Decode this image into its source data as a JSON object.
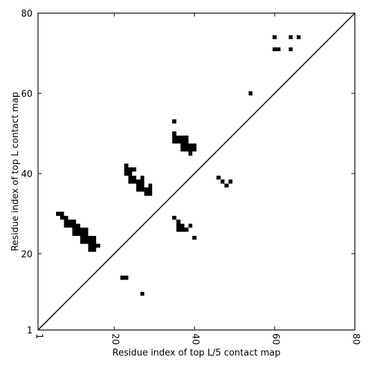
{
  "chart_data": {
    "type": "scatter",
    "title": "",
    "xlabel": "Residue index of top L/5 contact map",
    "ylabel": "Residue index of top L contact map",
    "xlim": [
      1,
      80
    ],
    "ylim": [
      1,
      80
    ],
    "xticks": [
      1,
      20,
      40,
      60,
      80
    ],
    "yticks": [
      1,
      20,
      40,
      60,
      80
    ],
    "diagonal_line": true,
    "grid": false,
    "marker": "square",
    "marker_color": "#000000",
    "upper_triangle_points": [
      [
        60,
        74
      ],
      [
        64,
        74
      ],
      [
        66,
        74
      ],
      [
        60,
        71
      ],
      [
        61,
        71
      ],
      [
        64,
        71
      ],
      [
        54,
        60
      ],
      [
        35,
        53
      ],
      [
        35,
        50
      ],
      [
        35,
        49
      ],
      [
        36,
        49
      ],
      [
        37,
        49
      ],
      [
        38,
        49
      ],
      [
        35,
        48
      ],
      [
        36,
        48
      ],
      [
        37,
        48
      ],
      [
        38,
        48
      ],
      [
        37,
        47
      ],
      [
        38,
        47
      ],
      [
        39,
        47
      ],
      [
        40,
        47
      ],
      [
        37,
        46
      ],
      [
        38,
        46
      ],
      [
        39,
        46
      ],
      [
        40,
        46
      ],
      [
        39,
        45
      ],
      [
        23,
        42
      ],
      [
        23,
        41
      ],
      [
        24,
        41
      ],
      [
        25,
        41
      ],
      [
        23,
        40
      ],
      [
        24,
        40
      ],
      [
        24,
        39
      ],
      [
        25,
        39
      ],
      [
        27,
        39
      ],
      [
        24,
        38
      ],
      [
        25,
        38
      ],
      [
        26,
        38
      ],
      [
        27,
        38
      ],
      [
        26,
        37
      ],
      [
        27,
        37
      ],
      [
        29,
        37
      ],
      [
        26,
        36
      ],
      [
        27,
        36
      ],
      [
        28,
        36
      ],
      [
        29,
        36
      ],
      [
        28,
        35
      ],
      [
        29,
        35
      ]
    ],
    "lower_triangle_points": [
      [
        46,
        39
      ],
      [
        47,
        38
      ],
      [
        49,
        38
      ],
      [
        48,
        37
      ],
      [
        6,
        30
      ],
      [
        7,
        30
      ],
      [
        7,
        29
      ],
      [
        8,
        29
      ],
      [
        8,
        28
      ],
      [
        9,
        28
      ],
      [
        10,
        28
      ],
      [
        8,
        27
      ],
      [
        9,
        27
      ],
      [
        10,
        27
      ],
      [
        11,
        27
      ],
      [
        10,
        26
      ],
      [
        11,
        26
      ],
      [
        12,
        26
      ],
      [
        13,
        26
      ],
      [
        10,
        25
      ],
      [
        11,
        25
      ],
      [
        12,
        25
      ],
      [
        13,
        25
      ],
      [
        12,
        24
      ],
      [
        13,
        24
      ],
      [
        14,
        24
      ],
      [
        15,
        24
      ],
      [
        12,
        23
      ],
      [
        13,
        23
      ],
      [
        14,
        23
      ],
      [
        15,
        23
      ],
      [
        14,
        22
      ],
      [
        15,
        22
      ],
      [
        16,
        22
      ],
      [
        14,
        21
      ],
      [
        15,
        21
      ],
      [
        35,
        29
      ],
      [
        36,
        28
      ],
      [
        36,
        27
      ],
      [
        37,
        27
      ],
      [
        39,
        27
      ],
      [
        36,
        26
      ],
      [
        37,
        26
      ],
      [
        38,
        26
      ],
      [
        40,
        24
      ],
      [
        22,
        14
      ],
      [
        23,
        14
      ],
      [
        27,
        10
      ]
    ]
  }
}
